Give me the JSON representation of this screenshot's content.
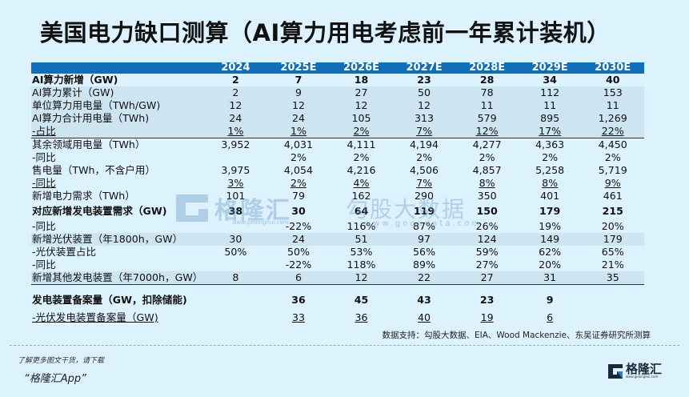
{
  "title": "美国电力缺口测算（AI算力用电考虑前一年累计装机）",
  "table": {
    "columns": [
      "",
      "2024",
      "2025E",
      "2026E",
      "2027E",
      "2028E",
      "2029E",
      "2030E"
    ],
    "rows": [
      {
        "label": "AI算力新增（GW)",
        "values": [
          "2",
          "7",
          "18",
          "23",
          "28",
          "34",
          "40"
        ]
      },
      {
        "label": "AI算力累计（GW)",
        "values": [
          "2",
          "9",
          "27",
          "50",
          "78",
          "112",
          "153"
        ]
      },
      {
        "label": "单位算力用电量（TWh/GW)",
        "values": [
          "12",
          "12",
          "12",
          "12",
          "11",
          "11",
          "11"
        ]
      },
      {
        "label": "AI算力合计用电量（TWh)",
        "values": [
          "24",
          "24",
          "105",
          "313",
          "579",
          "895",
          "1,269"
        ]
      },
      {
        "label": "-占比",
        "values": [
          "1%",
          "1%",
          "2%",
          "7%",
          "12%",
          "17%",
          "22%"
        ]
      },
      {
        "label": "其余领域用电量（TWh）",
        "values": [
          "3,952",
          "4,031",
          "4,111",
          "4,194",
          "4,277",
          "4,363",
          "4,450"
        ]
      },
      {
        "label": "-同比",
        "values": [
          "",
          "2%",
          "2%",
          "2%",
          "2%",
          "2%",
          "2%"
        ]
      },
      {
        "label": "售电量（TWh，不含户用）",
        "values": [
          "3,975",
          "4,054",
          "4,216",
          "4,506",
          "4,857",
          "5,258",
          "5,719"
        ]
      },
      {
        "label": "-同比",
        "values": [
          "3%",
          "2%",
          "4%",
          "7%",
          "8%",
          "8%",
          "9%"
        ]
      },
      {
        "label": "新增电力需求（TWh）",
        "values": [
          "101",
          "79",
          "162",
          "290",
          "350",
          "401",
          "461"
        ]
      },
      {
        "label": "对应新增发电装置需求（GW)",
        "values": [
          "38",
          "30",
          "64",
          "119",
          "150",
          "179",
          "215"
        ]
      },
      {
        "label": "-同比",
        "values": [
          "",
          "-22%",
          "116%",
          "87%",
          "26%",
          "19%",
          "20%"
        ]
      },
      {
        "label": "新增光伏装置（年1800h，GW）",
        "values": [
          "30",
          "24",
          "51",
          "97",
          "124",
          "149",
          "179"
        ]
      },
      {
        "label": "-光伏装置占比",
        "values": [
          "50%",
          "50%",
          "53%",
          "56%",
          "59%",
          "62%",
          "65%"
        ]
      },
      {
        "label": "-同比",
        "values": [
          "",
          "-22%",
          "118%",
          "89%",
          "27%",
          "20%",
          "21%"
        ]
      },
      {
        "label": "新增其他发电装置（年7000h，GW）",
        "values": [
          "8",
          "6",
          "12",
          "22",
          "27",
          "31",
          "35"
        ]
      },
      {
        "label": "发电装置备案量（GW，扣除储能)",
        "values": [
          "",
          "36",
          "45",
          "43",
          "23",
          "9",
          ""
        ]
      },
      {
        "label": "-光伏发电装置备案量（GW)",
        "values": [
          "",
          "33",
          "36",
          "40",
          "19",
          "6",
          ""
        ]
      }
    ]
  },
  "note": "数据支持：勾股大数据、EIA、Wood Mackenzie、东吴证券研究所测算",
  "footer": {
    "line1": "了解更多图文干货，请下载",
    "line2": "“格隆汇App”",
    "logo_text": "格隆汇",
    "logo_url": "www.gelonghui.com"
  },
  "watermarks": {
    "left": "格隆汇",
    "left_url": "www.gelonghui.com",
    "right": "勾股大数据",
    "right_url": "www.gogudata.com"
  },
  "colors": {
    "header_bg": "#0f6fba",
    "page_bg": "#dcf2fd",
    "shade_row": "#cde5f1"
  }
}
